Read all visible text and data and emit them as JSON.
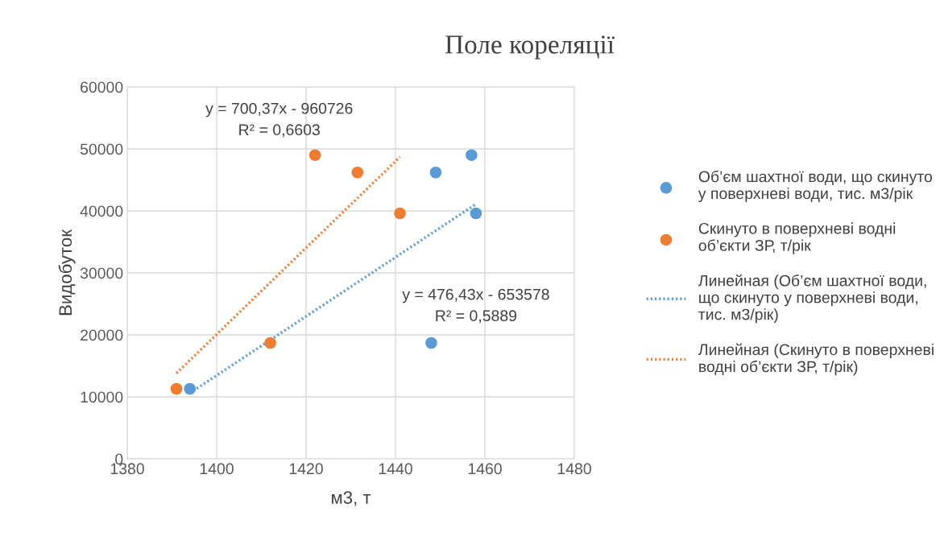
{
  "chart_data": {
    "type": "scatter",
    "title": "Поле кореляції",
    "xlabel": "м3, т",
    "ylabel": "Видобуток",
    "xlim": [
      1380,
      1480
    ],
    "xticks": [
      1380,
      1400,
      1420,
      1440,
      1460,
      1480
    ],
    "ylim": [
      0,
      60000
    ],
    "yticks": [
      0,
      10000,
      20000,
      30000,
      40000,
      50000,
      60000
    ],
    "grid": true,
    "legend": "right",
    "marker": "circle",
    "series": [
      {
        "name": "Об’єм шахтної води, що скинуто у поверхневі води, тис. м3/рік",
        "color": "#5b9bd5",
        "x": [
          1394,
          1412,
          1448,
          1449,
          1457,
          1458
        ],
        "values": [
          11300,
          null,
          18700,
          46200,
          49000,
          39600
        ]
      },
      {
        "name": "Скинуто в поверхневі водні об’єкти ЗР, т/рік",
        "color": "#ed7d31",
        "x": [
          1391,
          1412,
          1422,
          1431.5,
          1441
        ],
        "values": [
          11300,
          18700,
          49000,
          46200,
          39600
        ]
      },
      {
        "name": "Линейная (Об’єм шахтної води, що скинуто у поверхневі води, тис. м3/рік)",
        "type": "line",
        "line_style": "dotted",
        "marker": "none",
        "color": "#5b9bd5",
        "x": [
          1394,
          1458
        ],
        "values": [
          10600,
          41100
        ]
      },
      {
        "name": "Линейная (Скинуто в поверхневі водні об’єкти ЗР, т/рік)",
        "type": "line",
        "line_style": "dotted",
        "marker": "none",
        "color": "#ed7d31",
        "x": [
          1391,
          1441
        ],
        "values": [
          13800,
          48700
        ]
      }
    ],
    "annotations": [
      "y = 700,37x - 960726\nR² = 0,6603",
      "y = 476,43x - 653578\nR² = 0,5889"
    ]
  }
}
